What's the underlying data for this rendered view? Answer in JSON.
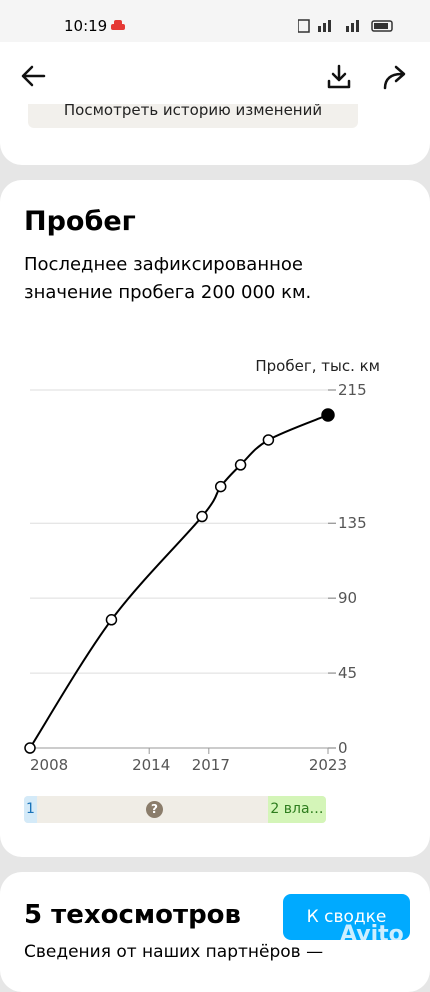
{
  "status_bar": {
    "time": "10:19"
  },
  "previous_card": {
    "button": "Посмотреть историю изменений"
  },
  "mileage": {
    "title": "Пробег",
    "description": "Последнее зафиксированное значение пробега 200 000 км.",
    "chart_data": {
      "type": "line",
      "y_axis_label": "Пробег, тыс. км",
      "x": [
        2008,
        2012.1,
        2016.66,
        2017.6,
        2018.6,
        2020.0,
        2023
      ],
      "values": [
        0,
        77,
        139,
        157,
        170,
        185,
        200
      ],
      "color": "#000000",
      "xlim": [
        2008,
        2023
      ],
      "xticks": [
        2008,
        2014,
        2017,
        2023
      ],
      "ylim": [
        0,
        215
      ],
      "yticks": [
        0,
        45,
        90,
        135,
        215
      ],
      "grid": true
    },
    "owners": {
      "first": "1",
      "unknown": "?",
      "last": "2 вла…"
    }
  },
  "inspections": {
    "title": "5 техосмотров",
    "button": "К сводке",
    "text": "Сведения от наших партнёров —"
  },
  "watermark": "Avito"
}
